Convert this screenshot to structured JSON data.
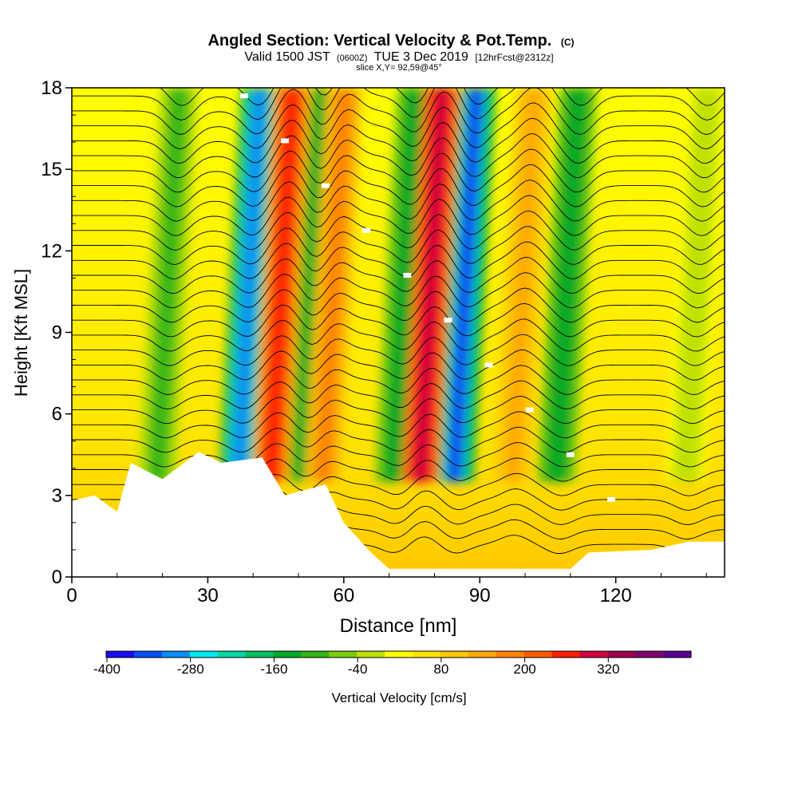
{
  "chart_data": {
    "type": "heatmap",
    "title": "Angled Section: Vertical Velocity & Pot.Temp.",
    "title_unit": "(C)",
    "subtitle_main": "Valid 1500 JST",
    "subtitle_utc": "(0600Z)",
    "subtitle_date": "TUE 3 Dec 2019",
    "subtitle_fcst": "[12hrFcst@2312z]",
    "slice_label": "slice X,Y= 92,59@45°",
    "xlabel": "Distance [nm]",
    "ylabel": "Height [Kft MSL]",
    "xlim": [
      0,
      144
    ],
    "ylim": [
      0,
      18
    ],
    "x_ticks": [
      "0",
      "30",
      "60",
      "90",
      "120"
    ],
    "y_ticks": [
      "0",
      "3",
      "6",
      "9",
      "12",
      "15",
      "18"
    ],
    "colorbar_label": "Vertical Velocity [cm/s]",
    "colorbar_ticks": [
      "-400",
      "-280",
      "-160",
      "-40",
      "80",
      "200",
      "320"
    ],
    "colorbar_colors": [
      "#1a0df0",
      "#0a4cf5",
      "#0a8ef5",
      "#00e8f0",
      "#00d8a8",
      "#00c060",
      "#00a828",
      "#30b418",
      "#7ccc0c",
      "#c0e000",
      "#ffff00",
      "#ffe600",
      "#ffc800",
      "#ffa800",
      "#ff8200",
      "#ff5a00",
      "#ff1e00",
      "#d2003c",
      "#a00050",
      "#800070",
      "#5a0090"
    ],
    "updrafts": [
      {
        "x": 47,
        "z": 12,
        "value": 200
      },
      {
        "x": 58,
        "z": 10,
        "value": 120
      },
      {
        "x": 80,
        "z": 12,
        "value": 240
      },
      {
        "x": 100,
        "z": 11,
        "value": 80
      }
    ],
    "downdrafts": [
      {
        "x": 39,
        "z": 9,
        "value": -300
      },
      {
        "x": 54,
        "z": 11,
        "value": -160
      },
      {
        "x": 74,
        "z": 11,
        "value": -180
      },
      {
        "x": 87,
        "z": 10,
        "value": -330
      },
      {
        "x": 110,
        "z": 12,
        "value": -180
      },
      {
        "x": 22,
        "z": 12,
        "value": -120
      },
      {
        "x": 138,
        "z": 10,
        "value": -60
      }
    ],
    "potential_temperature_contours": true,
    "terrain": "white filled area along bottom"
  }
}
